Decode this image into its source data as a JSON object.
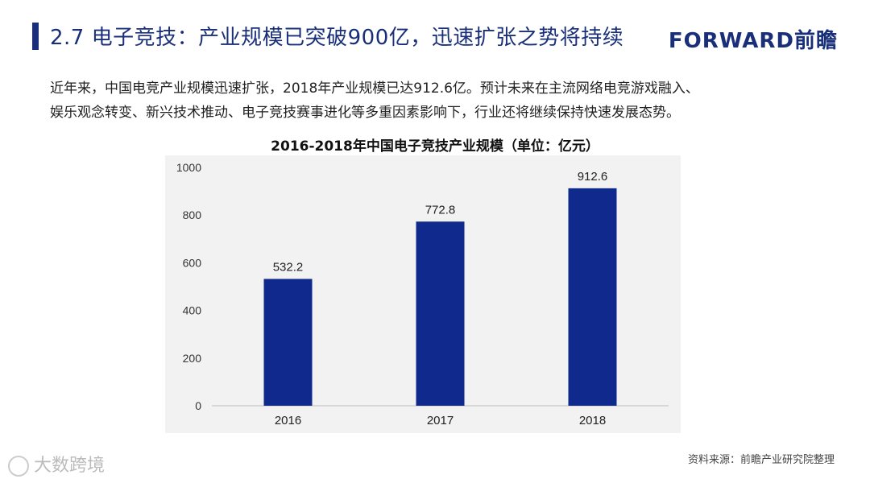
{
  "header": {
    "title": "2.7 电子竞技：产业规模已突破900亿，迅速扩张之势将持续",
    "brand": "FORWARD前瞻"
  },
  "intro": {
    "line1": "近年来，中国电竞产业规模迅速扩张，2018年产业规模已达912.6亿。预计未来在主流网络电竞游戏融入、",
    "line2": "娱乐观念转变、新兴技术推动、电子竞技赛事进化等多重因素影响下，行业还将继续保持快速发展态势。"
  },
  "chart_data": {
    "type": "bar",
    "title": "2016-2018年中国电子竞技产业规模（单位：亿元）",
    "categories": [
      "2016",
      "2017",
      "2018"
    ],
    "values": [
      532.2,
      772.8,
      912.6
    ],
    "data_labels": [
      "532.2",
      "772.8",
      "912.6"
    ],
    "yticks": [
      0,
      200,
      400,
      600,
      800,
      1000
    ],
    "ylim": [
      0,
      1000
    ],
    "xlabel": "",
    "ylabel": "",
    "bar_color": "#0f2a8c",
    "grid": false
  },
  "footer": {
    "source": "资料来源：前瞻产业研究院整理",
    "watermark": "大数跨境"
  },
  "colors": {
    "accent": "#1a2f7a",
    "bar": "#0f2a8c",
    "plot_bg": "#f2f2f2"
  }
}
